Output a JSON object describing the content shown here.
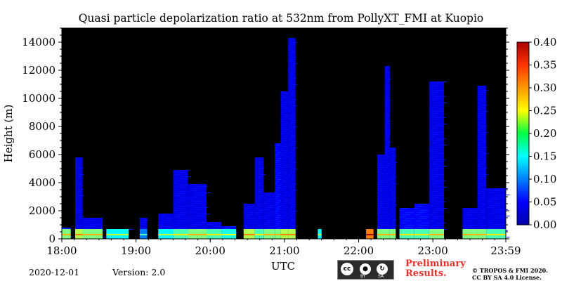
{
  "chart_data": {
    "type": "heatmap",
    "title": "Quasi particle depolarization ratio at 532nm from PollyXT_FMI at Kuopio",
    "xlabel": "UTC",
    "ylabel": "Height (m)",
    "x_ticks": [
      "18:00",
      "19:00",
      "20:00",
      "21:00",
      "22:00",
      "23:00",
      "23:59"
    ],
    "x_tick_hours": [
      18.0,
      19.0,
      20.0,
      21.0,
      22.0,
      23.0,
      23.983
    ],
    "xlim_hours": [
      18.0,
      23.983
    ],
    "y_ticks": [
      0,
      2000,
      4000,
      6000,
      8000,
      10000,
      12000,
      14000
    ],
    "ylim": [
      0,
      15000
    ],
    "colorbar": {
      "ticks": [
        "0.00",
        "0.05",
        "0.10",
        "0.15",
        "0.20",
        "0.25",
        "0.30",
        "0.35",
        "0.40"
      ],
      "range": [
        0.0,
        0.4
      ],
      "colormap": "jet"
    },
    "background_color": "#000000",
    "columns": [
      {
        "start": 18.0,
        "end": 18.12,
        "top": 800,
        "value": 0.06,
        "low_band": 0.2
      },
      {
        "start": 18.18,
        "end": 18.28,
        "top": 5800,
        "value": 0.04,
        "low_band": 0.22
      },
      {
        "start": 18.28,
        "end": 18.55,
        "top": 1500,
        "value": 0.04,
        "low_band": 0.2
      },
      {
        "start": 18.6,
        "end": 18.9,
        "top": 700,
        "value": 0.05,
        "low_band": 0.15
      },
      {
        "start": 19.05,
        "end": 19.15,
        "top": 1500,
        "value": 0.04,
        "low_band": 0.1
      },
      {
        "start": 19.3,
        "end": 19.5,
        "top": 1800,
        "value": 0.04,
        "low_band": 0.15
      },
      {
        "start": 19.5,
        "end": 19.7,
        "top": 4900,
        "value": 0.04,
        "low_band": 0.18
      },
      {
        "start": 19.7,
        "end": 19.95,
        "top": 3900,
        "value": 0.04,
        "low_band": 0.2
      },
      {
        "start": 19.95,
        "end": 20.15,
        "top": 1200,
        "value": 0.04,
        "low_band": 0.18
      },
      {
        "start": 20.15,
        "end": 20.35,
        "top": 900,
        "value": 0.05,
        "low_band": 0.16
      },
      {
        "start": 20.45,
        "end": 20.6,
        "top": 2500,
        "value": 0.04,
        "low_band": 0.22
      },
      {
        "start": 20.6,
        "end": 20.72,
        "top": 5800,
        "value": 0.04,
        "low_band": 0.18
      },
      {
        "start": 20.72,
        "end": 20.87,
        "top": 3300,
        "value": 0.04,
        "low_band": 0.2
      },
      {
        "start": 20.87,
        "end": 20.95,
        "top": 6800,
        "value": 0.05,
        "low_band": 0.2
      },
      {
        "start": 20.95,
        "end": 21.05,
        "top": 10500,
        "value": 0.04,
        "low_band": 0.22
      },
      {
        "start": 21.05,
        "end": 21.15,
        "top": 14300,
        "value": 0.04,
        "low_band": 0.22
      },
      {
        "start": 21.45,
        "end": 21.5,
        "top": 600,
        "value": 0.04,
        "low_band": 0.15
      },
      {
        "start": 22.1,
        "end": 22.2,
        "top": 400,
        "value": 0.04,
        "low_band": 0.3
      },
      {
        "start": 22.25,
        "end": 22.35,
        "top": 6000,
        "value": 0.04,
        "low_band": 0.2
      },
      {
        "start": 22.35,
        "end": 22.42,
        "top": 12300,
        "value": 0.04,
        "low_band": 0.2
      },
      {
        "start": 22.42,
        "end": 22.5,
        "top": 6500,
        "value": 0.04,
        "low_band": 0.2
      },
      {
        "start": 22.55,
        "end": 22.75,
        "top": 2200,
        "value": 0.05,
        "low_band": 0.18
      },
      {
        "start": 22.75,
        "end": 22.95,
        "top": 2500,
        "value": 0.05,
        "low_band": 0.18
      },
      {
        "start": 22.95,
        "end": 23.15,
        "top": 11200,
        "value": 0.04,
        "low_band": 0.2
      },
      {
        "start": 23.4,
        "end": 23.6,
        "top": 2200,
        "value": 0.04,
        "low_band": 0.2
      },
      {
        "start": 23.6,
        "end": 23.72,
        "top": 10900,
        "value": 0.04,
        "low_band": 0.2
      },
      {
        "start": 23.72,
        "end": 23.983,
        "top": 3600,
        "value": 0.04,
        "low_band": 0.18
      }
    ]
  },
  "footer": {
    "date": "2020-12-01",
    "version": "Version: 2.0",
    "preliminary_line1": "Preliminary",
    "preliminary_line2": "Results.",
    "copyright_line1": "© TROPOS & FMI 2020.",
    "copyright_line2": "CC BY SA 4.0 License.",
    "cc_badge": {
      "cc": "cc",
      "by": "BY",
      "sa": "SA"
    }
  }
}
